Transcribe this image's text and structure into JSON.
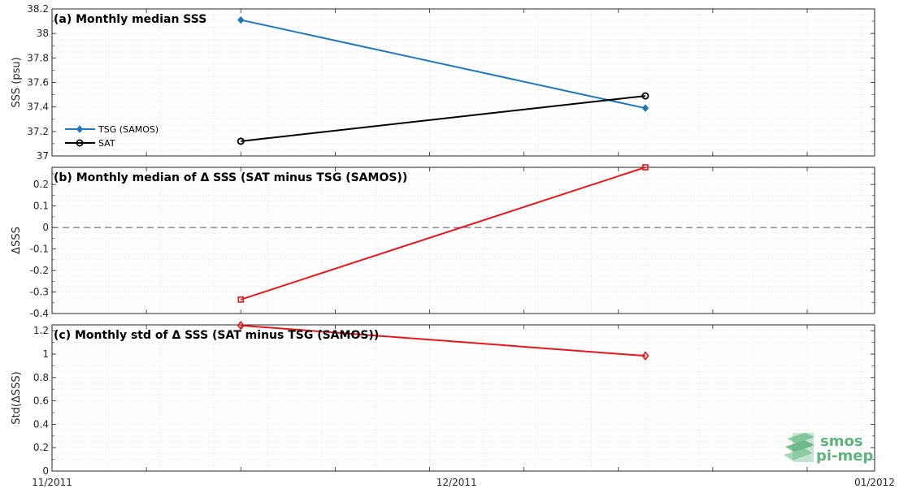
{
  "chart_data": [
    {
      "type": "line",
      "title": "(a) Monthly median SSS",
      "ylabel": "SSS (psu)",
      "ylim": [
        37,
        38.2
      ],
      "yticks": [
        37,
        37.2,
        37.4,
        37.6,
        37.8,
        38,
        38.2
      ],
      "ytick_labels": [
        "37",
        "37.2",
        "37.4",
        "37.6",
        "37.8",
        "38",
        "38.2"
      ],
      "grid": true,
      "legend": "bottom-left",
      "series": [
        {
          "name": "TSG (SAMOS)",
          "color": "#1f77c0",
          "marker": "diamond-filled",
          "x": [
            "2011-11-15",
            "2011-12-15"
          ],
          "y": [
            38.11,
            37.39
          ]
        },
        {
          "name": "SAT",
          "color": "#000000",
          "marker": "circle-open",
          "x": [
            "2011-11-15",
            "2011-12-15"
          ],
          "y": [
            37.12,
            37.49
          ]
        }
      ]
    },
    {
      "type": "line",
      "title": "(b) Monthly median of Δ SSS (SAT minus TSG (SAMOS))",
      "ylabel": "ΔSSS",
      "ylim": [
        -0.4,
        0.28
      ],
      "yticks": [
        -0.4,
        -0.3,
        -0.2,
        -0.1,
        0,
        0.1,
        0.2
      ],
      "ytick_labels": [
        "-0.4",
        "-0.3",
        "-0.2",
        "-0.1",
        "0",
        "0.1",
        "0.2"
      ],
      "grid": true,
      "reference_line": {
        "y": 0,
        "style": "dashed",
        "color": "#555555"
      },
      "series": [
        {
          "color": "#e8161b",
          "marker": "square-open",
          "x": [
            "2011-11-15",
            "2011-12-15"
          ],
          "y": [
            -0.335,
            0.28
          ]
        }
      ]
    },
    {
      "type": "line",
      "title": "(c) Monthly std of Δ SSS (SAT minus TSG (SAMOS))",
      "ylabel": "Std(ΔSSS)",
      "ylim": [
        0,
        1.25
      ],
      "yticks": [
        0,
        0.2,
        0.4,
        0.6,
        0.8,
        1,
        1.2
      ],
      "ytick_labels": [
        "0",
        "0.2",
        "0.4",
        "0.6",
        "0.8",
        "1",
        "1.2"
      ],
      "grid": true,
      "series": [
        {
          "color": "#e8161b",
          "marker": "diamond-open",
          "x": [
            "2011-11-15",
            "2011-12-15"
          ],
          "y": [
            1.245,
            0.985
          ]
        }
      ],
      "x_axis": {
        "range": [
          "2011-11-01",
          "2012-01-01"
        ],
        "tick_labels": [
          {
            "date": "2011-11-01",
            "label": "11/2011"
          },
          {
            "date": "2011-12-01",
            "label": "12/2011"
          },
          {
            "date": "2012-01-01",
            "label": "01/2012"
          }
        ]
      }
    }
  ],
  "logo": {
    "line1": "smos",
    "line2": "pi-mep",
    "color": "#5fb37d"
  }
}
